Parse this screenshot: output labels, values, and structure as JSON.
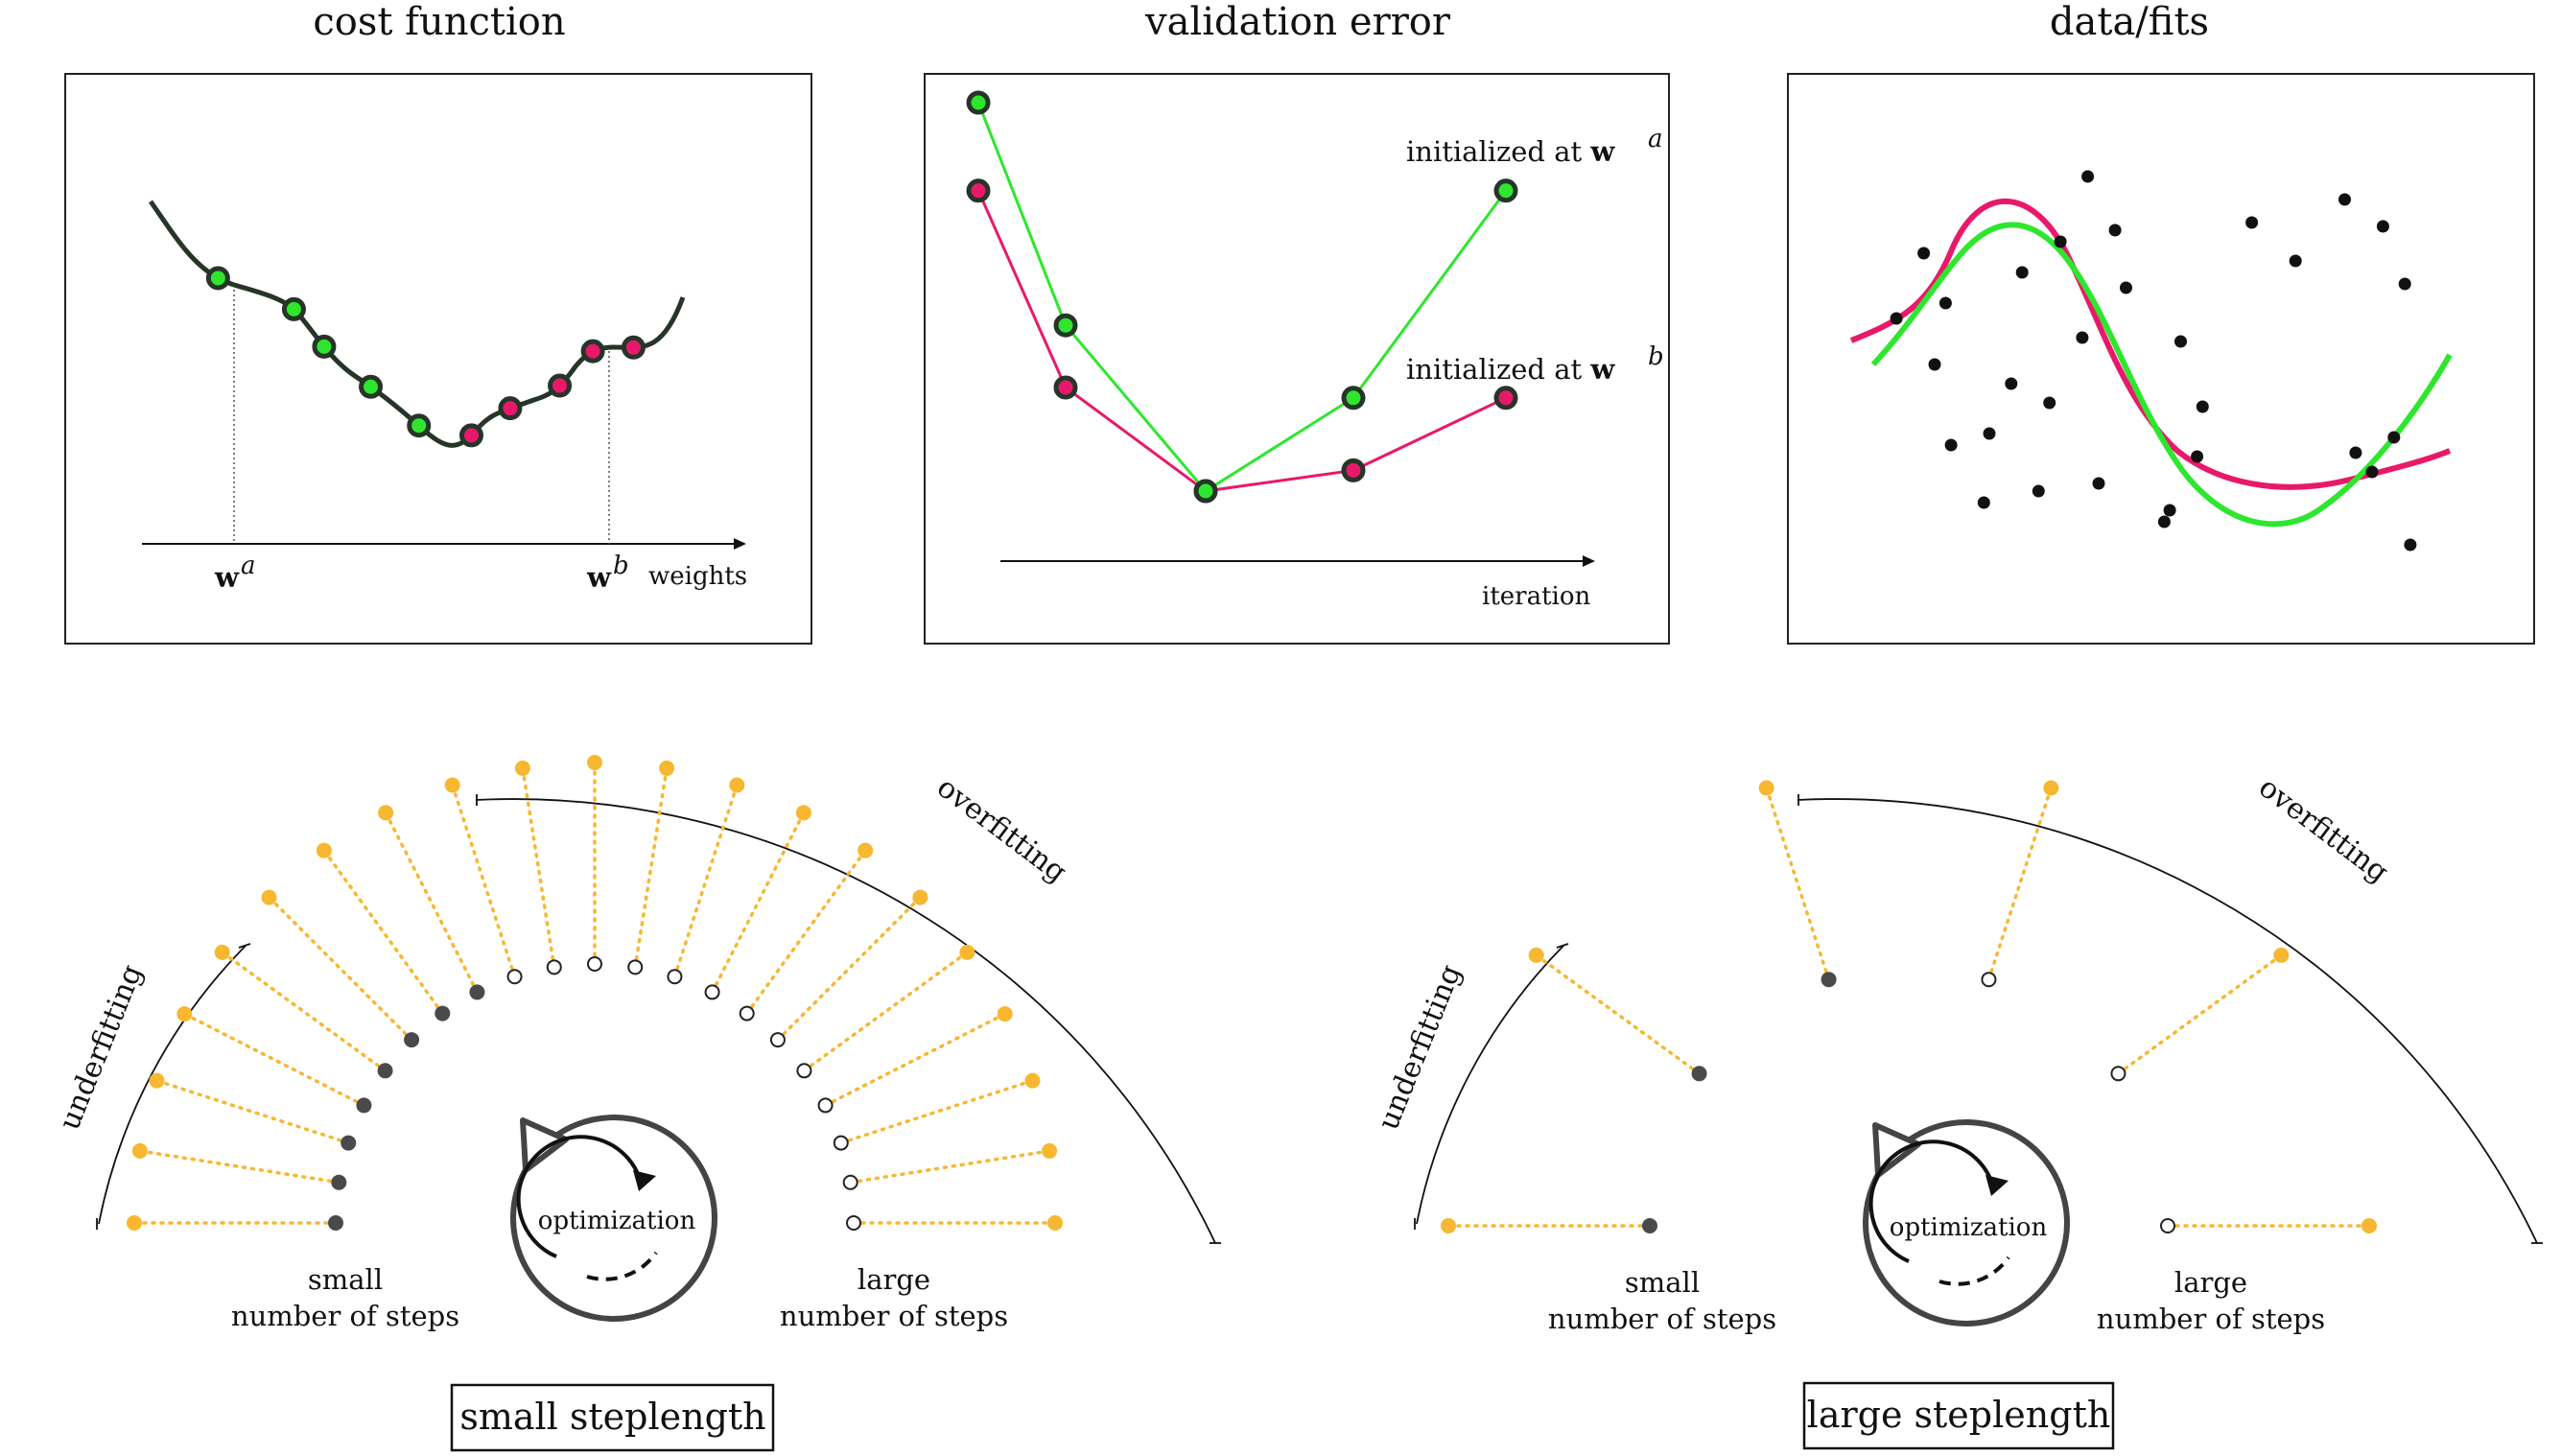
{
  "colors": {
    "green": "#2ee62e",
    "pink": "#e8196b",
    "curve": "#263528",
    "gold": "#f7b731",
    "dark_dot": "#4a4a4a",
    "frame": "#222222"
  },
  "panels": {
    "cost": {
      "title": "cost function",
      "wa_label": "w",
      "wa_sup": "a",
      "wb_label": "w",
      "wb_sup": "b",
      "axis_label": "weights"
    },
    "validation": {
      "title": "validation error",
      "axis_label": "iteration",
      "legend_a_text": "initialized at ",
      "legend_a_w": "w",
      "legend_a_sup": "a",
      "legend_b_text": "initialized at ",
      "legend_b_w": "w",
      "legend_b_sup": "b"
    },
    "fits": {
      "title": "data/fits"
    }
  },
  "diagrams": {
    "left": {
      "underfitting": "underfitting",
      "overfitting": "overfitting",
      "small_line1": "small",
      "small_line2": "number of steps",
      "large_line1": "large",
      "large_line2": "number of steps",
      "optimization": "optimization",
      "box_label": "small steplength"
    },
    "right": {
      "underfitting": "underfitting",
      "overfitting": "overfitting",
      "small_line1": "small",
      "small_line2": "number of steps",
      "large_line1": "large",
      "large_line2": "number of steps",
      "optimization": "optimization",
      "box_label": "large steplength"
    }
  },
  "chart_data": [
    {
      "type": "line",
      "title": "validation error",
      "xlabel": "iteration",
      "series": [
        {
          "name": "initialized at w^a",
          "x": [
            1,
            2,
            3,
            4,
            5
          ],
          "values": [
            95,
            52,
            20,
            38,
            78
          ]
        },
        {
          "name": "initialized at w^b",
          "x": [
            1,
            2,
            3,
            4,
            5
          ],
          "values": [
            78,
            40,
            20,
            24,
            38
          ]
        }
      ]
    },
    {
      "type": "scatter",
      "title": "data/fits",
      "points": [
        [
          0.03,
          0.62
        ],
        [
          0.08,
          0.79
        ],
        [
          0.1,
          0.5
        ],
        [
          0.12,
          0.66
        ],
        [
          0.13,
          0.29
        ],
        [
          0.19,
          0.14
        ],
        [
          0.2,
          0.32
        ],
        [
          0.24,
          0.45
        ],
        [
          0.26,
          0.74
        ],
        [
          0.29,
          0.17
        ],
        [
          0.31,
          0.4
        ],
        [
          0.33,
          0.82
        ],
        [
          0.37,
          0.57
        ],
        [
          0.38,
          0.99
        ],
        [
          0.4,
          0.19
        ],
        [
          0.43,
          0.85
        ],
        [
          0.45,
          0.7
        ],
        [
          0.52,
          0.09
        ],
        [
          0.53,
          0.12
        ],
        [
          0.55,
          0.56
        ],
        [
          0.58,
          0.26
        ],
        [
          0.59,
          0.39
        ],
        [
          0.68,
          0.87
        ],
        [
          0.76,
          0.77
        ],
        [
          0.85,
          0.93
        ],
        [
          0.87,
          0.27
        ],
        [
          0.9,
          0.22
        ],
        [
          0.92,
          0.86
        ],
        [
          0.94,
          0.31
        ],
        [
          0.96,
          0.71
        ],
        [
          0.97,
          0.03
        ]
      ],
      "series": [
        {
          "name": "fit from w^a",
          "color": "green"
        },
        {
          "name": "fit from w^b",
          "color": "pink"
        }
      ]
    }
  ],
  "cost_points": {
    "green": [
      0.15,
      0.27,
      0.34,
      0.43,
      0.52
    ],
    "pink": [
      0.61,
      0.68,
      0.76,
      0.83,
      0.89
    ]
  },
  "fan": {
    "left": {
      "dark": [
        0,
        1,
        2,
        3,
        4,
        5,
        6,
        7
      ],
      "open": [
        8,
        9,
        10,
        11,
        12,
        13,
        14,
        15,
        16,
        17,
        18,
        19,
        20
      ],
      "count": 21
    },
    "right": {
      "dark": [
        0,
        2,
        4
      ],
      "open": [
        6,
        8,
        10
      ],
      "count": 11
    }
  }
}
